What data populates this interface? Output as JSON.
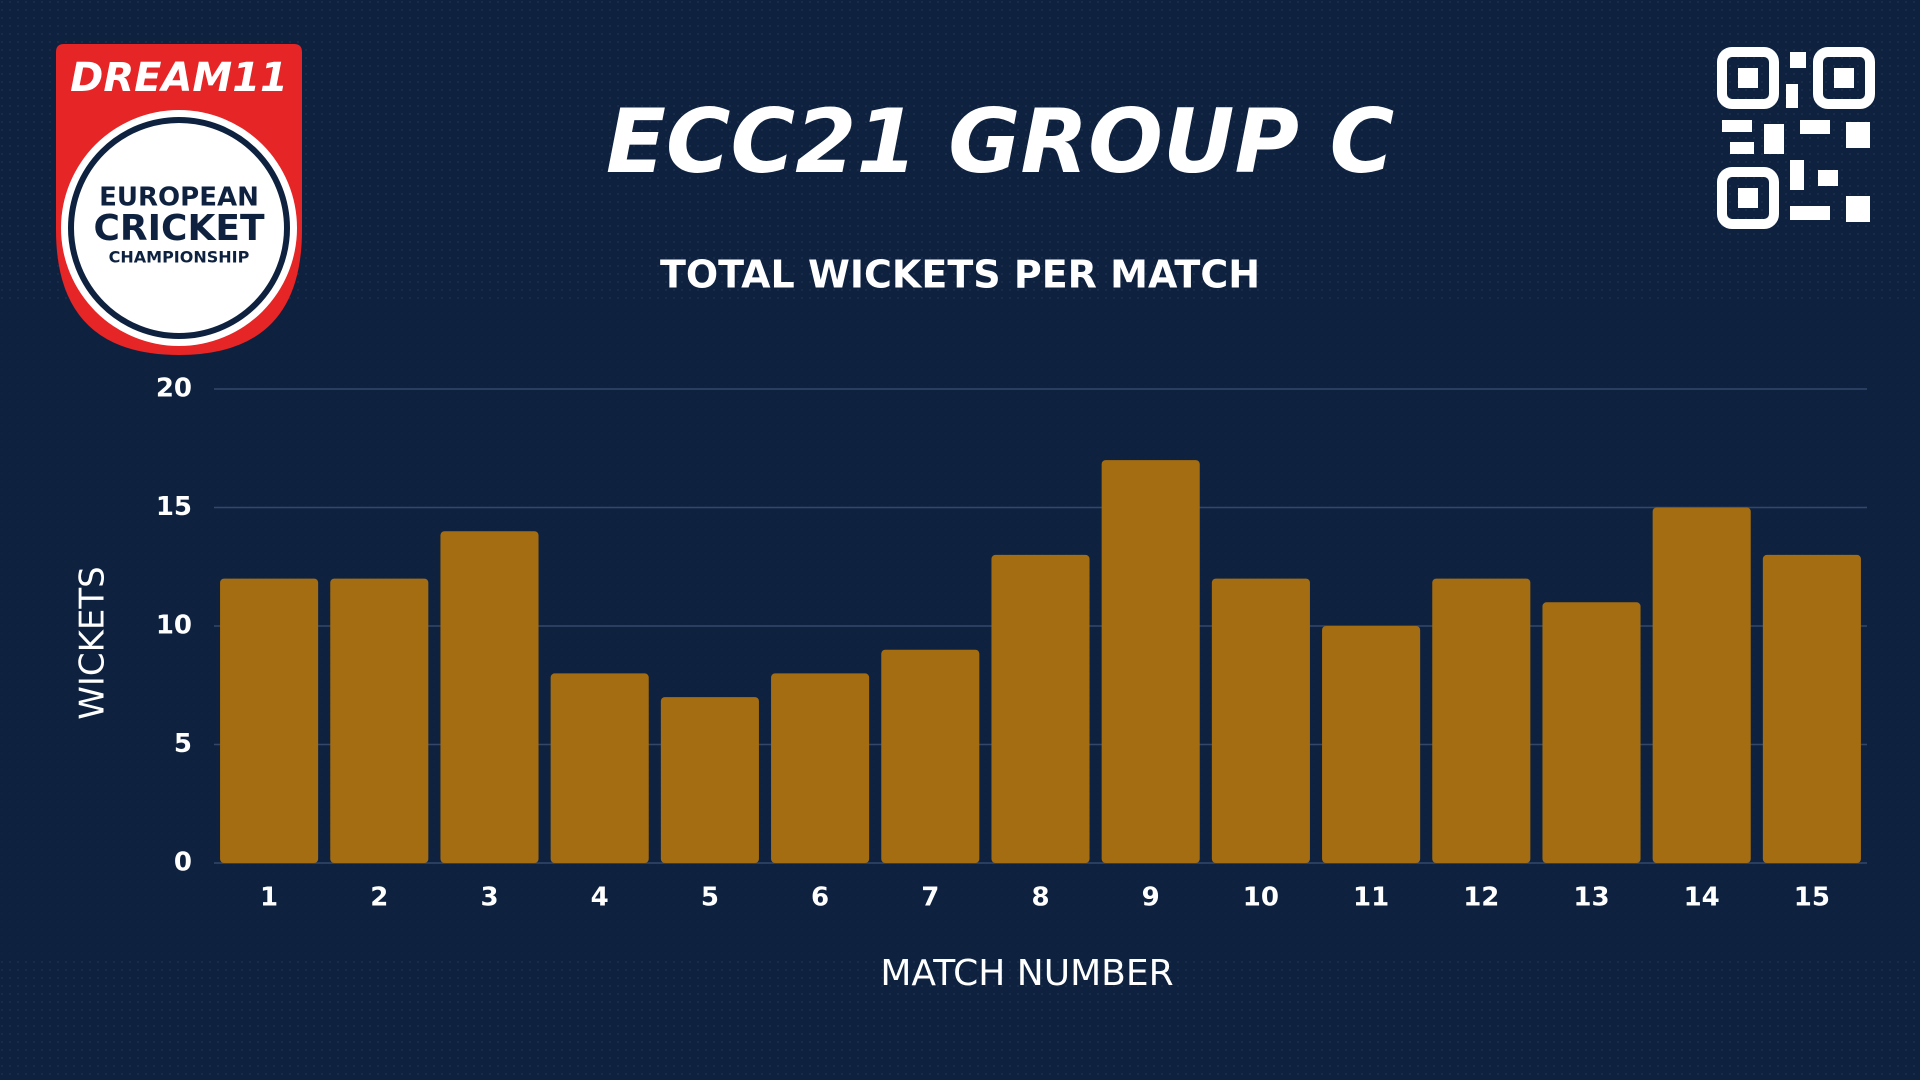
{
  "logo": {
    "brand": "DREAM11",
    "lines": [
      "EUROPEAN",
      "CRICKET",
      "CHAMPIONSHIP"
    ]
  },
  "chart_data": {
    "type": "bar",
    "title": "ECC21 GROUP C",
    "subtitle": "TOTAL WICKETS PER MATCH",
    "x_label": "MATCH NUMBER",
    "y_label": "WICKETS",
    "categories": [
      "1",
      "2",
      "3",
      "4",
      "5",
      "6",
      "7",
      "8",
      "9",
      "10",
      "11",
      "12",
      "13",
      "14",
      "15"
    ],
    "values": [
      12,
      12,
      14,
      8,
      7,
      8,
      9,
      13,
      17,
      12,
      10,
      12,
      11,
      15,
      13
    ],
    "color": "#a56d12",
    "ylim": [
      0,
      20
    ],
    "yticks": [
      0,
      5,
      10,
      15,
      20
    ],
    "grid": true
  }
}
